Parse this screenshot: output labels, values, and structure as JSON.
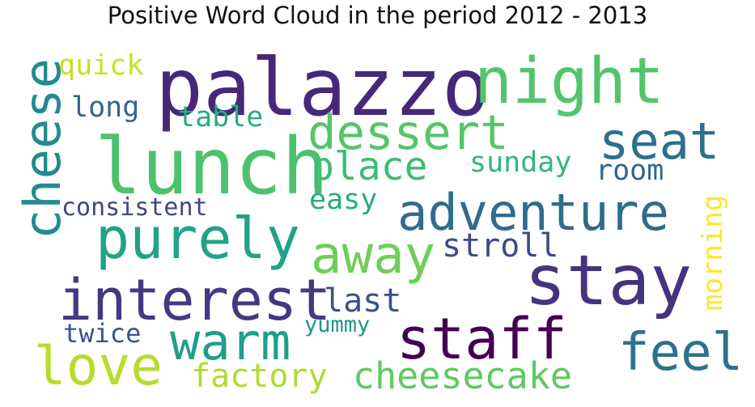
{
  "title": "Positive Word Cloud in the period 2012 - 2013",
  "words": [
    {
      "text": "palazzo",
      "color": "#472878"
    },
    {
      "text": "night",
      "color": "#52c56a"
    },
    {
      "text": "lunch",
      "color": "#4cc26c"
    },
    {
      "text": "cheese",
      "color": "#228c8d"
    },
    {
      "text": "dessert",
      "color": "#54c568"
    },
    {
      "text": "seat",
      "color": "#2e6f8e"
    },
    {
      "text": "adventure",
      "color": "#2f6c8e"
    },
    {
      "text": "purely",
      "color": "#20a386"
    },
    {
      "text": "place",
      "color": "#3dbc74"
    },
    {
      "text": "sunday",
      "color": "#34b679"
    },
    {
      "text": "room",
      "color": "#32648e"
    },
    {
      "text": "away",
      "color": "#6ece58"
    },
    {
      "text": "stroll",
      "color": "#3e4a89"
    },
    {
      "text": "stay",
      "color": "#46337e"
    },
    {
      "text": "interest",
      "color": "#453882"
    },
    {
      "text": "last",
      "color": "#3b518b"
    },
    {
      "text": "warm",
      "color": "#1f9e89"
    },
    {
      "text": "staff",
      "color": "#440154"
    },
    {
      "text": "feel",
      "color": "#2c728e"
    },
    {
      "text": "love",
      "color": "#b5de2b"
    },
    {
      "text": "twice",
      "color": "#3b528b"
    },
    {
      "text": "yummy",
      "color": "#1f968b"
    },
    {
      "text": "factory",
      "color": "#addc30"
    },
    {
      "text": "cheesecake",
      "color": "#5ec962"
    },
    {
      "text": "quick",
      "color": "#c8e020"
    },
    {
      "text": "long",
      "color": "#31668e"
    },
    {
      "text": "table",
      "color": "#26ad81"
    },
    {
      "text": "consistent",
      "color": "#414487"
    },
    {
      "text": "easy",
      "color": "#25ab82"
    },
    {
      "text": "morning",
      "color": "#fde725"
    }
  ]
}
